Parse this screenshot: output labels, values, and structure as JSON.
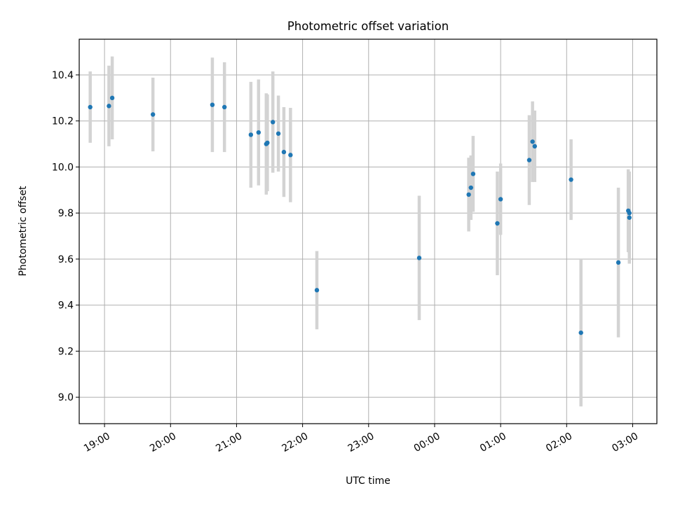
{
  "chart_data": {
    "type": "scatter",
    "title": "Photometric offset variation",
    "xlabel": "UTC time",
    "ylabel": "Photometric offset",
    "x_format": "HH:MM",
    "xlim": [
      "2024-01-01T18:37",
      "2024-01-02T03:22"
    ],
    "ylim": [
      8.885,
      10.555
    ],
    "xticks": [
      {
        "t": "2024-01-01T19:00",
        "label": "19:00"
      },
      {
        "t": "2024-01-01T20:00",
        "label": "20:00"
      },
      {
        "t": "2024-01-01T21:00",
        "label": "21:00"
      },
      {
        "t": "2024-01-01T22:00",
        "label": "22:00"
      },
      {
        "t": "2024-01-01T23:00",
        "label": "23:00"
      },
      {
        "t": "2024-01-02T00:00",
        "label": "00:00"
      },
      {
        "t": "2024-01-02T01:00",
        "label": "01:00"
      },
      {
        "t": "2024-01-02T02:00",
        "label": "02:00"
      },
      {
        "t": "2024-01-02T03:00",
        "label": "03:00"
      }
    ],
    "yticks": [
      {
        "v": 9.0,
        "label": "9.0"
      },
      {
        "v": 9.2,
        "label": "9.2"
      },
      {
        "v": 9.4,
        "label": "9.4"
      },
      {
        "v": 9.6,
        "label": "9.6"
      },
      {
        "v": 9.8,
        "label": "9.8"
      },
      {
        "v": 10.0,
        "label": "10.0"
      },
      {
        "v": 10.2,
        "label": "10.2"
      },
      {
        "v": 10.4,
        "label": "10.4"
      }
    ],
    "grid": true,
    "marker_color": "#1f77b4",
    "errorbar_color": "#d3d3d3",
    "points": [
      {
        "t": "2024-01-01T18:47",
        "y": 10.26,
        "err": 0.155
      },
      {
        "t": "2024-01-01T19:04",
        "y": 10.265,
        "err": 0.175
      },
      {
        "t": "2024-01-01T19:07",
        "y": 10.3,
        "err": 0.18
      },
      {
        "t": "2024-01-01T19:44",
        "y": 10.228,
        "err": 0.16
      },
      {
        "t": "2024-01-01T20:38",
        "y": 10.27,
        "err": 0.205
      },
      {
        "t": "2024-01-01T20:49",
        "y": 10.26,
        "err": 0.195
      },
      {
        "t": "2024-01-01T21:13",
        "y": 10.14,
        "err": 0.23
      },
      {
        "t": "2024-01-01T21:20",
        "y": 10.15,
        "err": 0.23
      },
      {
        "t": "2024-01-01T21:27",
        "y": 10.1,
        "err": 0.22
      },
      {
        "t": "2024-01-01T21:28",
        "y": 10.105,
        "err": 0.21
      },
      {
        "t": "2024-01-01T21:33",
        "y": 10.195,
        "err": 0.22
      },
      {
        "t": "2024-01-01T21:38",
        "y": 10.145,
        "err": 0.165
      },
      {
        "t": "2024-01-01T21:43",
        "y": 10.065,
        "err": 0.195
      },
      {
        "t": "2024-01-01T21:49",
        "y": 10.052,
        "err": 0.205
      },
      {
        "t": "2024-01-01T22:13",
        "y": 9.465,
        "err": 0.17
      },
      {
        "t": "2024-01-01T23:46",
        "y": 9.605,
        "err": 0.27
      },
      {
        "t": "2024-01-02T00:31",
        "y": 9.88,
        "err": 0.16
      },
      {
        "t": "2024-01-02T00:33",
        "y": 9.91,
        "err": 0.14
      },
      {
        "t": "2024-01-02T00:35",
        "y": 9.97,
        "err": 0.165
      },
      {
        "t": "2024-01-02T00:57",
        "y": 9.755,
        "err": 0.225
      },
      {
        "t": "2024-01-02T01:00",
        "y": 9.86,
        "err": 0.155
      },
      {
        "t": "2024-01-02T01:26",
        "y": 10.03,
        "err": 0.195
      },
      {
        "t": "2024-01-02T01:29",
        "y": 10.11,
        "err": 0.175
      },
      {
        "t": "2024-01-02T01:31",
        "y": 10.09,
        "err": 0.155
      },
      {
        "t": "2024-01-02T02:04",
        "y": 9.945,
        "err": 0.175
      },
      {
        "t": "2024-01-02T02:13",
        "y": 9.28,
        "err": 0.32
      },
      {
        "t": "2024-01-02T02:47",
        "y": 9.585,
        "err": 0.325
      },
      {
        "t": "2024-01-02T02:56",
        "y": 9.81,
        "err": 0.18
      },
      {
        "t": "2024-01-02T02:57",
        "y": 9.8,
        "err": 0.175
      },
      {
        "t": "2024-01-02T02:57",
        "y": 9.78,
        "err": 0.2
      }
    ]
  }
}
